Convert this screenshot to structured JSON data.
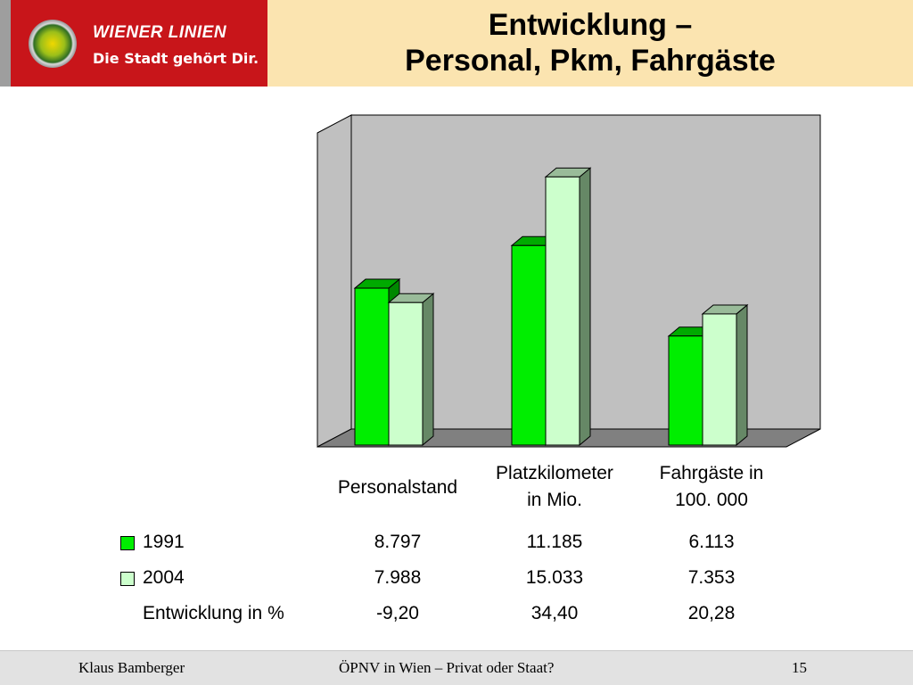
{
  "header": {
    "brand_name": "WIENER LINIEN",
    "slogan": "Die Stadt gehört Dir.",
    "title_line1": "Entwicklung –",
    "title_line2": "Personal, Pkm, Fahrgäste",
    "colors": {
      "brand_red": "#c8151a",
      "banner": "#fbe4b0"
    }
  },
  "chart_data": {
    "type": "bar",
    "style": "3d-clustered",
    "categories": [
      "Personalstand",
      "Platzkilometer in Mio.",
      "Fahrgäste in 100. 000"
    ],
    "category_lines": [
      [
        "Personalstand"
      ],
      [
        "Platzkilometer",
        "in Mio."
      ],
      [
        "Fahrgäste in",
        "100. 000"
      ]
    ],
    "series": [
      {
        "name": "1991",
        "values": [
          8.797,
          11.185,
          6.113
        ],
        "color": "#00ee00"
      },
      {
        "name": "2004",
        "values": [
          7.988,
          15.033,
          7.353
        ],
        "color": "#ccffcc"
      }
    ],
    "ylim": [
      0,
      18.5
    ],
    "grid": false,
    "wall_color": "#c0c0c0",
    "floor_color": "#808080"
  },
  "table": {
    "rows": [
      {
        "label": "1991",
        "values": [
          "8.797",
          "11.185",
          "6.113"
        ]
      },
      {
        "label": "2004",
        "values": [
          "7.988",
          "15.033",
          "7.353"
        ]
      },
      {
        "label": "Entwicklung in %",
        "values": [
          "-9,20",
          "34,40",
          "20,28"
        ]
      }
    ]
  },
  "footer": {
    "author": "Klaus Bamberger",
    "subject": "ÖPNV in Wien – Privat oder Staat?",
    "page": "15"
  }
}
